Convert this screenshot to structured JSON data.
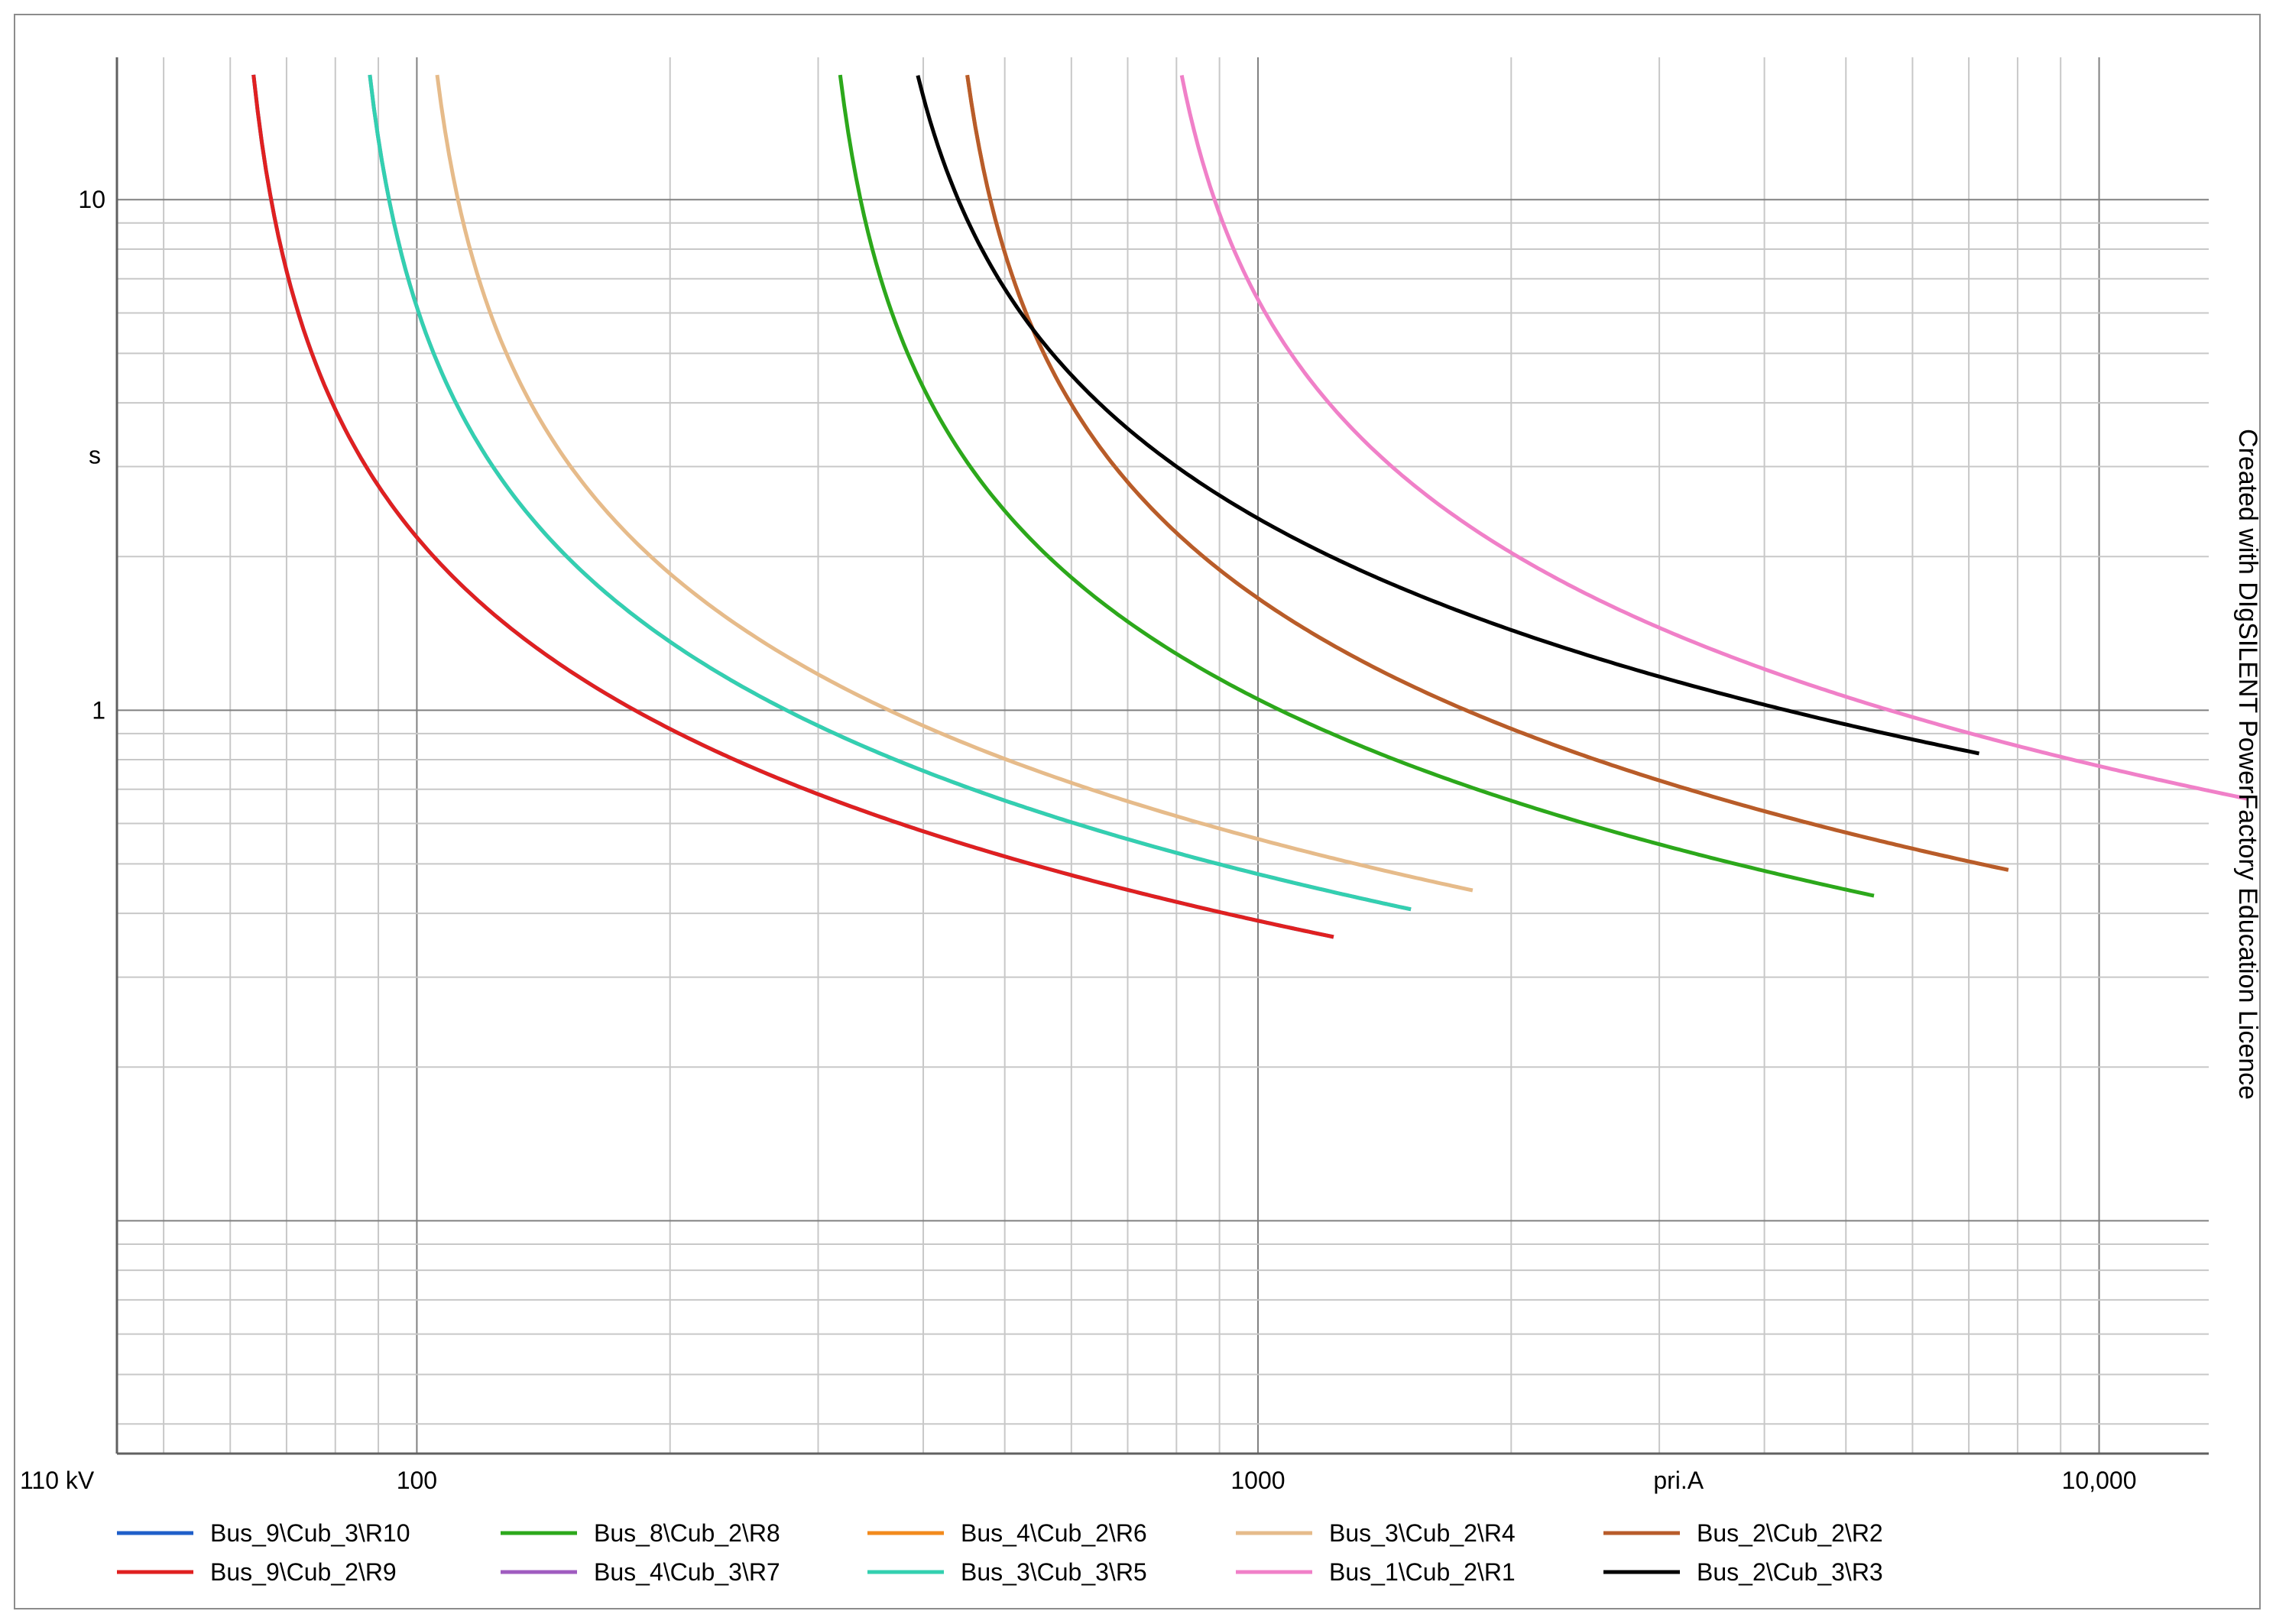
{
  "chart_data": {
    "type": "line",
    "x_scale": "log",
    "y_scale": "log",
    "xlim": [
      44,
      13500
    ],
    "ylim": [
      0.035,
      19
    ],
    "x_tick_labels": [
      {
        "value": 100,
        "label": "100"
      },
      {
        "value": 1000,
        "label": "1000"
      },
      {
        "value": 10000,
        "label": "10,000"
      }
    ],
    "x_unit_label": {
      "value": 3162,
      "label": "pri.A"
    },
    "y_tick_labels": [
      {
        "value": 10,
        "label": "10"
      },
      {
        "value": 1,
        "label": "1"
      }
    ],
    "y_unit_label": {
      "value": 3.162,
      "label": "s"
    },
    "voltage_label": "110 kV",
    "watermark": "Created with DIgSILENT PowerFactory Education Licence",
    "grid": true,
    "legend_position": "bottom",
    "series": [
      {
        "name": "Bus_9\\Cub_3\\R10",
        "color": "#1f5fc9",
        "tms": 0.16,
        "pickup": 60,
        "imax": 1230
      },
      {
        "name": "Bus_8\\Cub_2\\R8",
        "color": "#2ca81b",
        "tms": 0.185,
        "pickup": 296,
        "imax": 5400
      },
      {
        "name": "Bus_4\\Cub_2\\R6",
        "color": "#f28a1c",
        "tms": 0.21,
        "pickup": 415,
        "imax": 7800
      },
      {
        "name": "Bus_3\\Cub_2\\R4",
        "color": "#e6bb8a",
        "tms": 0.19,
        "pickup": 98,
        "imax": 1800
      },
      {
        "name": "Bus_2\\Cub_2\\R2",
        "color": "#b85c2a",
        "tms": 0.21,
        "pickup": 415,
        "imax": 7800
      },
      {
        "name": "Bus_9\\Cub_2\\R9",
        "color": "#e02020",
        "tms": 0.16,
        "pickup": 60,
        "imax": 1230
      },
      {
        "name": "Bus_4\\Cub_3\\R7",
        "color": "#a05cc0",
        "tms": 0.175,
        "pickup": 82,
        "imax": 1520
      },
      {
        "name": "Bus_3\\Cub_3\\R5",
        "color": "#33d0b0",
        "tms": 0.175,
        "pickup": 82,
        "imax": 1520
      },
      {
        "name": "Bus_1\\Cub_2\\R1",
        "color": "#f080c8",
        "tms": 0.3,
        "pickup": 720,
        "imax": 15000
      },
      {
        "name": "Bus_2\\Cub_3\\R3",
        "color": "#000000",
        "tms": 0.37,
        "pickup": 340,
        "imax": 7200
      }
    ]
  }
}
